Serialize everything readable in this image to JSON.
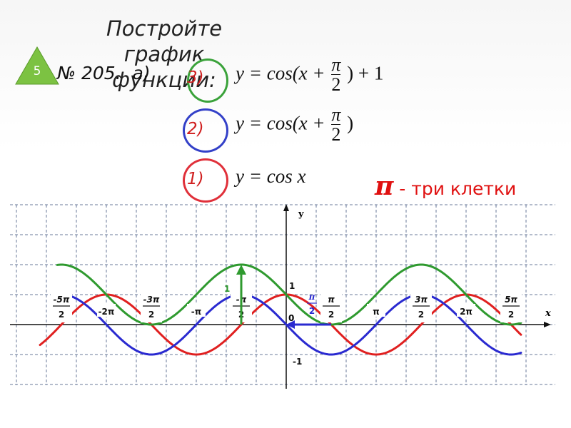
{
  "title": "Постройте график функции:",
  "badge": {
    "number": "5",
    "color": "#7cc242"
  },
  "problem": "№ 205.  а)",
  "formulas": [
    {
      "num": "3)",
      "circle_color": "#3aa23a",
      "prefix": "y = cos(x +",
      "frac_num": "π",
      "frac_den": "2",
      "suffix": ") + 1"
    },
    {
      "num": "2)",
      "circle_color": "#3340c8",
      "prefix": "y = cos(x +",
      "frac_num": "π",
      "frac_den": "2",
      "suffix": ")"
    },
    {
      "num": "1)",
      "circle_color": "#e0303a",
      "prefix": "y = cos x",
      "frac_num": "",
      "frac_den": "",
      "suffix": ""
    }
  ],
  "note": {
    "pi": "π",
    "text": " - три клетки",
    "color": "#e01010"
  },
  "chart_data": {
    "type": "line",
    "xlabel": "x",
    "ylabel": "y",
    "origin_label": "0",
    "xlim": [
      -9.16,
      9.16
    ],
    "ylim": [
      -2.1,
      4.2
    ],
    "grid": true,
    "x_ticks": [
      {
        "value": -7.854,
        "num": "-5π",
        "den": "2"
      },
      {
        "value": -6.283,
        "label": "-2π"
      },
      {
        "value": -4.712,
        "num": "-3π",
        "den": "2"
      },
      {
        "value": -3.1416,
        "label": "-π"
      },
      {
        "value": -1.5708,
        "num": "-π",
        "den": "2"
      },
      {
        "value": 1.5708,
        "num": "π",
        "den": "2"
      },
      {
        "value": 3.1416,
        "label": "π"
      },
      {
        "value": 4.712,
        "num": "3π",
        "den": "2"
      },
      {
        "value": 6.283,
        "label": "2π"
      },
      {
        "value": 7.854,
        "num": "5π",
        "den": "2"
      }
    ],
    "y_ticks": [
      {
        "value": 1,
        "label": "1"
      },
      {
        "value": -1,
        "label": "-1"
      }
    ],
    "shift_labels": {
      "horizontal": {
        "num": "π",
        "den": "2"
      },
      "vertical": "1"
    },
    "series": [
      {
        "color": "#e02020",
        "formula": "cos(x)",
        "phase": 0,
        "offset": 0,
        "x_range": [
          -8.6,
          8.2
        ]
      },
      {
        "color": "#2a2ad0",
        "formula": "cos(x+π/2)",
        "phase": 1.5708,
        "offset": 0,
        "x_range": [
          -8.0,
          8.2
        ]
      },
      {
        "color": "#2f9a2f",
        "formula": "cos(x+π/2)+1",
        "phase": 1.5708,
        "offset": 1,
        "x_range": [
          -8.0,
          8.2
        ]
      }
    ]
  }
}
